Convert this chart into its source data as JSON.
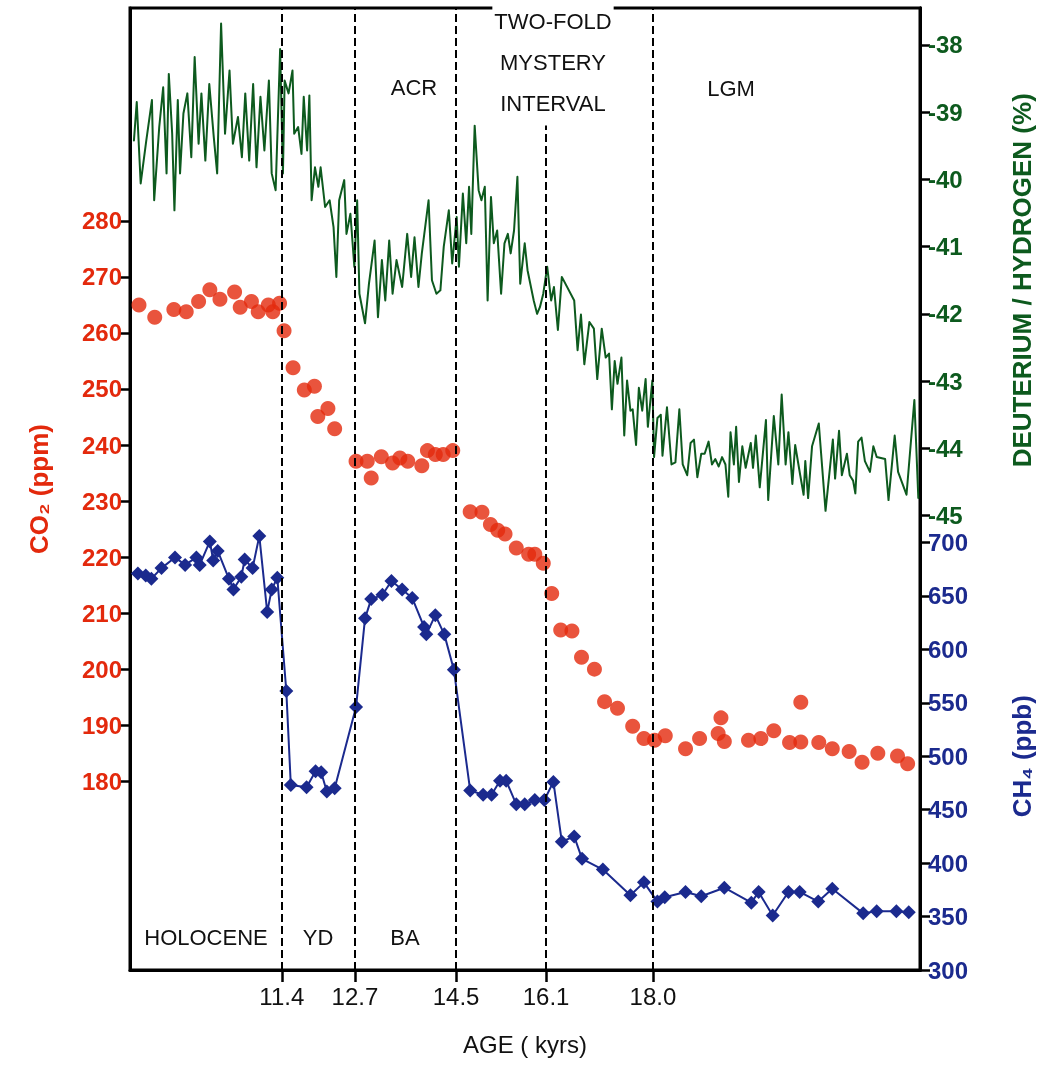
{
  "chart_data": {
    "type": "scatter",
    "xlabel": "AGE ( kyrs)",
    "ylabel": "CO₂ (ppm)",
    "y2label": "DEUTERIUM / HYDROGEN (%)",
    "y3label": "CH₄ (ppb)",
    "xlim": [
      8.7,
      22.75
    ],
    "xticks": [
      11.4,
      12.7,
      14.5,
      16.1,
      {
        "value": 18,
        "label": "18.0"
      }
    ],
    "ylim": [
      146.3,
      318
    ],
    "yticks": [
      180,
      190,
      200,
      210,
      220,
      230,
      240,
      250,
      260,
      270,
      280
    ],
    "y2lim": [
      -51.76,
      -37.45
    ],
    "y2ticks": [
      -45,
      -44,
      -43,
      -42,
      -41,
      -40,
      -39,
      -38
    ],
    "y3lim": [
      300,
      1200
    ],
    "y3ticks": [
      300,
      350,
      400,
      450,
      500,
      550,
      600,
      650,
      700
    ],
    "grid": false,
    "ref_lines": [
      {
        "axis": "x",
        "value": 11.4,
        "color": "#000000",
        "line_style": "dashed"
      },
      {
        "axis": "x",
        "value": 12.7,
        "color": "#000000",
        "line_style": "dashed"
      },
      {
        "axis": "x",
        "value": 14.5,
        "color": "#000000",
        "line_style": "dashed"
      },
      {
        "axis": "x",
        "value": 16.1,
        "color": "#000000",
        "line_style": "dashed"
      },
      {
        "axis": "x",
        "value": 18.0,
        "color": "#000000",
        "line_style": "dashed"
      }
    ],
    "annotations": [
      "HOLOCENE",
      "YD",
      "BA",
      "ACR",
      "TWO-FOLD\nMYSTERY\nINTERVAL",
      "LGM"
    ],
    "series": [
      {
        "type": "line",
        "axis": "y2",
        "color": "#0d5a1e",
        "marker": "none",
        "line_style": "solid",
        "x": [
          8.77,
          8.82,
          8.89,
          8.99,
          9.09,
          9.13,
          9.22,
          9.29,
          9.35,
          9.39,
          9.45,
          9.49,
          9.55,
          9.59,
          9.65,
          9.72,
          9.79,
          9.85,
          9.92,
          9.97,
          10.04,
          10.11,
          10.19,
          10.25,
          10.32,
          10.39,
          10.47,
          10.53,
          10.62,
          10.69,
          10.75,
          10.82,
          10.89,
          10.95,
          11.02,
          11.09,
          11.17,
          11.22,
          11.29,
          11.37,
          11.42,
          11.45,
          11.52,
          11.59,
          11.62,
          11.69,
          11.75,
          11.79,
          11.85,
          11.89,
          11.93,
          11.99,
          12.05,
          12.09,
          12.17,
          12.25,
          12.32,
          12.37,
          12.42,
          12.51,
          12.55,
          12.62,
          12.69,
          12.74,
          12.78,
          12.88,
          12.95,
          13.05,
          13.11,
          13.18,
          13.24,
          13.31,
          13.37,
          13.44,
          13.54,
          13.63,
          13.7,
          13.76,
          13.83,
          13.89,
          14.01,
          14.07,
          14.15,
          14.22,
          14.28,
          14.37,
          14.43,
          14.51,
          14.55,
          14.62,
          14.68,
          14.73,
          14.77,
          14.83,
          14.9,
          14.95,
          15.01,
          15.06,
          15.12,
          15.17,
          15.23,
          15.3,
          15.36,
          15.42,
          15.47,
          15.53,
          15.59,
          15.64,
          15.72,
          15.77,
          15.88,
          15.94,
          15.99,
          16.05,
          16.12,
          16.19,
          16.24,
          16.31,
          16.38,
          16.6,
          16.66,
          16.72,
          16.78,
          16.87,
          16.95,
          17.01,
          17.09,
          17.16,
          17.22,
          17.27,
          17.32,
          17.37,
          17.44,
          17.49,
          17.54,
          17.6,
          17.64,
          17.7,
          17.75,
          17.81,
          17.87,
          17.91,
          17.99,
          18.02,
          18.08,
          18.14,
          18.17,
          18.25,
          18.33,
          18.4,
          18.47,
          18.53,
          18.61,
          18.67,
          18.73,
          18.79,
          18.86,
          18.92,
          18.99,
          19.05,
          19.11,
          19.17,
          19.23,
          19.29,
          19.34,
          19.38,
          19.44,
          19.48,
          19.53,
          19.59,
          19.65,
          19.74,
          19.78,
          19.83,
          19.9,
          20.01,
          20.05,
          20.15,
          20.23,
          20.29,
          20.36,
          20.41,
          20.48,
          20.53,
          20.62,
          20.68,
          20.71,
          20.76,
          20.83,
          20.95,
          21.07,
          21.2,
          21.24,
          21.31,
          21.36,
          21.45,
          21.5,
          21.56,
          21.6,
          21.65,
          21.71,
          21.77,
          21.86,
          21.92,
          21.98,
          22.13,
          22.19,
          22.3,
          22.36,
          22.51,
          22.65,
          22.72
        ],
        "values": [
          -39.42,
          -38.85,
          -40.06,
          -39.42,
          -38.82,
          -40.31,
          -39.22,
          -38.63,
          -39.91,
          -38.43,
          -39.32,
          -40.46,
          -38.82,
          -39.91,
          -39.02,
          -38.72,
          -39.67,
          -38.18,
          -39.47,
          -38.72,
          -39.72,
          -38.58,
          -39.37,
          -39.91,
          -37.68,
          -39.32,
          -38.38,
          -39.47,
          -39.07,
          -39.67,
          -38.72,
          -39.72,
          -38.58,
          -39.82,
          -38.77,
          -39.57,
          -38.53,
          -39.91,
          -40.16,
          -38.06,
          -39.91,
          -38.53,
          -38.72,
          -38.38,
          -39.32,
          -39.22,
          -39.62,
          -38.77,
          -39.57,
          -38.75,
          -40.31,
          -39.82,
          -40.11,
          -39.82,
          -40.41,
          -40.31,
          -40.71,
          -41.45,
          -40.31,
          -40.01,
          -40.81,
          -40.51,
          -41.3,
          -40.31,
          -41.7,
          -42.14,
          -41.55,
          -40.91,
          -42.05,
          -41.2,
          -41.8,
          -40.91,
          -41.7,
          -41.2,
          -41.6,
          -40.81,
          -41.45,
          -40.86,
          -41.6,
          -41.1,
          -40.31,
          -41.5,
          -41.7,
          -41.65,
          -41.0,
          -40.46,
          -41.25,
          -40.56,
          -41.3,
          -40.21,
          -40.95,
          -40.11,
          -40.81,
          -39.2,
          -40.16,
          -40.31,
          -40.11,
          -41.8,
          -40.26,
          -40.95,
          -40.76,
          -41.7,
          -40.95,
          -40.81,
          -41.1,
          -40.76,
          -39.96,
          -41.55,
          -40.95,
          -41.35,
          -41.8,
          -42.0,
          -41.9,
          -41.7,
          -41.3,
          -41.8,
          -41.6,
          -42.24,
          -41.45,
          -41.8,
          -42.54,
          -42.01,
          -42.75,
          -42.12,
          -42.22,
          -42.97,
          -42.22,
          -42.65,
          -42.59,
          -43.42,
          -42.7,
          -43.04,
          -42.65,
          -43.81,
          -42.99,
          -43.44,
          -43.42,
          -43.95,
          -43.1,
          -43.44,
          -42.97,
          -43.68,
          -42.99,
          -44.13,
          -43.55,
          -43.5,
          -44.11,
          -43.39,
          -44.24,
          -44.21,
          -43.42,
          -44.24,
          -44.4,
          -43.92,
          -43.87,
          -44.43,
          -44.08,
          -44.08,
          -43.9,
          -44.24,
          -44.16,
          -44.27,
          -44.13,
          -44.24,
          -44.72,
          -43.76,
          -44.24,
          -43.68,
          -44.5,
          -43.97,
          -44.29,
          -43.92,
          -44.29,
          -43.81,
          -44.58,
          -43.58,
          -44.77,
          -43.52,
          -44.24,
          -43.2,
          -44.24,
          -43.76,
          -44.53,
          -43.95,
          -44.4,
          -44.69,
          -44.19,
          -44.74,
          -43.97,
          -43.63,
          -44.93,
          -43.87,
          -44.45,
          -43.74,
          -44.4,
          -44.08,
          -44.4,
          -44.48,
          -44.67,
          -43.9,
          -43.84,
          -44.19,
          -44.35,
          -43.97,
          -44.13,
          -44.16,
          -44.77,
          -43.81,
          -44.35,
          -44.69,
          -43.28,
          -44.74
        ]
      },
      {
        "axis": "y",
        "color": "#e3290c",
        "marker": "circle",
        "x": [
          8.86,
          9.14,
          9.48,
          9.7,
          9.92,
          10.12,
          10.3,
          10.56,
          10.66,
          10.86,
          10.98,
          11.16,
          11.24,
          11.36,
          11.44,
          11.6,
          11.8,
          11.98,
          12.04,
          12.22,
          12.34,
          12.72,
          12.92,
          12.99,
          13.17,
          13.37,
          13.5,
          13.64,
          13.89,
          13.99,
          14.13,
          14.27,
          14.44,
          14.75,
          14.96,
          15.11,
          15.24,
          15.37,
          15.57,
          15.79,
          15.9,
          16.05,
          16.2,
          16.36,
          16.56,
          16.73,
          16.96,
          17.14,
          17.37,
          17.64,
          17.84,
          18.03,
          18.22,
          18.58,
          18.83,
          19.16,
          19.21,
          19.27,
          19.7,
          19.92,
          20.15,
          20.43,
          20.63,
          20.63,
          20.95,
          21.19,
          21.49,
          21.72,
          22.0,
          22.35,
          22.53
        ],
        "values": [
          265.0,
          262.8,
          264.2,
          263.8,
          265.6,
          267.7,
          266.0,
          267.3,
          264.6,
          265.6,
          263.8,
          265.0,
          263.8,
          265.3,
          260.4,
          253.8,
          249.8,
          250.5,
          245.1,
          246.5,
          242.9,
          237.1,
          237.1,
          234.1,
          237.9,
          236.8,
          237.7,
          237.1,
          236.3,
          239.0,
          238.3,
          238.3,
          239.0,
          228.1,
          228.0,
          225.8,
          224.8,
          224.1,
          221.6,
          220.5,
          220.5,
          218.9,
          213.5,
          207.0,
          206.8,
          202.1,
          200.0,
          194.2,
          193.0,
          189.8,
          187.6,
          187.3,
          188.1,
          185.8,
          187.6,
          188.5,
          191.3,
          187.1,
          187.3,
          187.6,
          189.0,
          186.9,
          194.1,
          187.0,
          186.9,
          185.8,
          185.3,
          183.4,
          185.0,
          184.5,
          183.1
        ]
      },
      {
        "type": "line",
        "axis": "y3",
        "color": "#1b2a8e",
        "marker": "diamond",
        "line_style": "solid",
        "x": [
          8.84,
          8.98,
          9.08,
          9.26,
          9.5,
          9.68,
          9.88,
          9.94,
          10.12,
          10.18,
          10.26,
          10.46,
          10.54,
          10.68,
          10.74,
          10.88,
          11.0,
          11.14,
          11.22,
          11.32,
          11.48,
          11.56,
          11.84,
          12.0,
          12.1,
          12.2,
          12.34,
          12.72,
          12.88,
          12.99,
          13.19,
          13.35,
          13.54,
          13.72,
          13.93,
          13.97,
          14.13,
          14.29,
          14.46,
          14.75,
          14.98,
          15.13,
          15.28,
          15.39,
          15.57,
          15.72,
          15.9,
          16.07,
          16.23,
          16.38,
          16.6,
          16.74,
          17.11,
          17.6,
          17.84,
          18.08,
          18.21,
          18.58,
          18.86,
          19.27,
          19.75,
          19.88,
          20.13,
          20.41,
          20.61,
          20.94,
          21.19,
          21.74,
          21.98,
          22.33,
          22.55
        ],
        "values": [
          671,
          669,
          666,
          676,
          686,
          679,
          686,
          679,
          701,
          683,
          692,
          666,
          656,
          668,
          684,
          676,
          706,
          635,
          656,
          667,
          561,
          473,
          471,
          486,
          485,
          467,
          470,
          546,
          629,
          647,
          651,
          664,
          656,
          648,
          621,
          614,
          632,
          614,
          581,
          468,
          464,
          464,
          477,
          477,
          455,
          455,
          459,
          459,
          476,
          420,
          425,
          404,
          394,
          370,
          382,
          364,
          368,
          373,
          369,
          377,
          363,
          373,
          351,
          373,
          373,
          364,
          376,
          353,
          355,
          355,
          354
        ]
      }
    ]
  }
}
